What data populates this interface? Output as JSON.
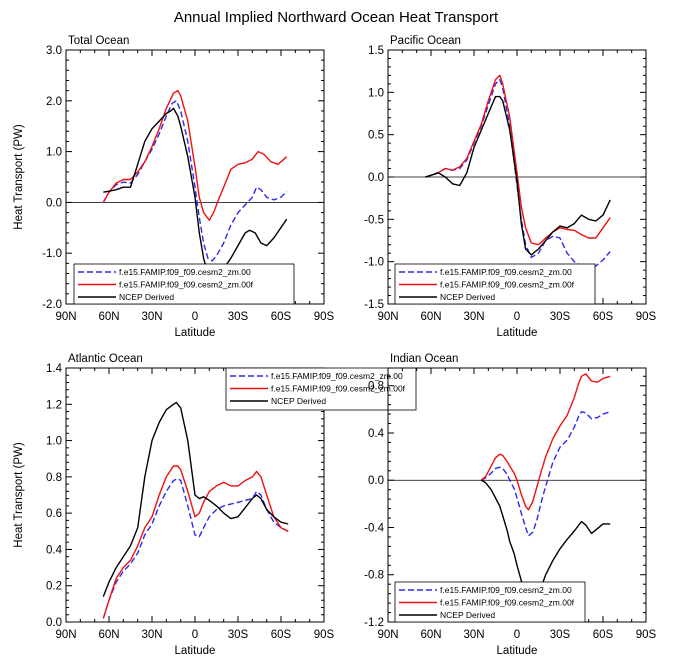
{
  "figure_title": "Annual Implied Northward Ocean Heat Transport",
  "colors": {
    "series_0": "#2a2aee",
    "series_1": "#ee1111",
    "series_2": "#000000"
  },
  "chart_data": [
    {
      "type": "line",
      "title": "Total Ocean",
      "xlabel": "Latitude",
      "ylabel": "Heat Transport (PW)",
      "xlim": [
        90,
        -90
      ],
      "ylim": [
        -2.0,
        3.0
      ],
      "x_ticks": [
        90,
        60,
        30,
        0,
        -30,
        -60,
        -90
      ],
      "x_tick_labels": [
        "90N",
        "60N",
        "30N",
        "0",
        "30S",
        "60S",
        "90S"
      ],
      "y_ticks": [
        -2.0,
        -1.0,
        0.0,
        1.0,
        2.0,
        3.0
      ],
      "y_tick_labels": [
        "-2.0",
        "-1.0",
        "0.0",
        "1.0",
        "2.0",
        "3.0"
      ],
      "legend_position": "bottom-left",
      "series": [
        {
          "name": "f.e15.FAMIP.f09_f09.cesm2_zm.00",
          "style": "dashed",
          "color": "#2a2aee",
          "x": [
            64,
            60,
            55,
            50,
            45,
            40,
            35,
            30,
            25,
            20,
            16,
            13,
            10,
            5,
            0,
            -3,
            -6,
            -9,
            -12,
            -15,
            -20,
            -25,
            -30,
            -35,
            -40,
            -43,
            -46,
            -50,
            -55,
            -60,
            -64
          ],
          "y": [
            0.0,
            0.2,
            0.35,
            0.4,
            0.38,
            0.55,
            0.8,
            1.05,
            1.35,
            1.7,
            1.95,
            2.0,
            1.8,
            1.2,
            0.3,
            -0.3,
            -0.8,
            -1.1,
            -1.15,
            -1.05,
            -0.8,
            -0.45,
            -0.2,
            -0.05,
            0.1,
            0.3,
            0.25,
            0.1,
            0.05,
            0.1,
            0.22
          ]
        },
        {
          "name": "f.e15.FAMIP.f09_f09.cesm2_zm.00f",
          "style": "solid",
          "color": "#ee1111",
          "x": [
            64,
            60,
            55,
            50,
            45,
            40,
            35,
            30,
            25,
            20,
            15,
            12,
            10,
            5,
            0,
            -3,
            -6,
            -10,
            -13,
            -17,
            -20,
            -25,
            -30,
            -35,
            -40,
            -44,
            -48,
            -53,
            -58,
            -64
          ],
          "y": [
            0.0,
            0.2,
            0.38,
            0.45,
            0.45,
            0.6,
            0.8,
            1.1,
            1.45,
            1.85,
            2.15,
            2.2,
            2.1,
            1.6,
            0.7,
            0.1,
            -0.2,
            -0.35,
            -0.2,
            0.1,
            0.3,
            0.65,
            0.75,
            0.78,
            0.85,
            1.0,
            0.95,
            0.8,
            0.75,
            0.9
          ]
        },
        {
          "name": "NCEP Derived",
          "style": "solid",
          "color": "#000000",
          "x": [
            64,
            60,
            55,
            50,
            45,
            40,
            35,
            30,
            25,
            20,
            17,
            15,
            12,
            10,
            5,
            0,
            -3,
            -6,
            -9,
            -13,
            -17,
            -20,
            -25,
            -30,
            -35,
            -38,
            -42,
            -46,
            -50,
            -55,
            -64
          ],
          "y": [
            0.2,
            0.22,
            0.25,
            0.3,
            0.3,
            0.75,
            1.2,
            1.45,
            1.6,
            1.75,
            1.8,
            1.85,
            1.7,
            1.5,
            0.9,
            0.1,
            -0.6,
            -1.1,
            -1.4,
            -1.5,
            -1.45,
            -1.3,
            -1.1,
            -0.85,
            -0.6,
            -0.55,
            -0.6,
            -0.8,
            -0.85,
            -0.7,
            -0.33
          ]
        }
      ]
    },
    {
      "type": "line",
      "title": "Pacific Ocean",
      "xlabel": "Latitude",
      "ylabel": "",
      "xlim": [
        90,
        -90
      ],
      "ylim": [
        -1.5,
        1.5
      ],
      "x_ticks": [
        90,
        60,
        30,
        0,
        -30,
        -60,
        -90
      ],
      "x_tick_labels": [
        "90N",
        "60N",
        "30N",
        "0",
        "30S",
        "60S",
        "90S"
      ],
      "y_ticks": [
        -1.5,
        -1.0,
        -0.5,
        0.0,
        0.5,
        1.0,
        1.5
      ],
      "y_tick_labels": [
        "-1.5",
        "-1.0",
        "-0.5",
        "0.0",
        "0.5",
        "1.0",
        "1.5"
      ],
      "legend_position": "bottom-right",
      "series": [
        {
          "name": "f.e15.FAMIP.f09_f09.cesm2_zm.00",
          "style": "dashed",
          "color": "#2a2aee",
          "x": [
            64,
            60,
            55,
            50,
            45,
            40,
            35,
            30,
            25,
            20,
            15,
            12,
            10,
            5,
            0,
            -3,
            -6,
            -10,
            -15,
            -20,
            -25,
            -30,
            -35,
            -40,
            -45,
            -50,
            -55,
            -60,
            -65
          ],
          "y": [
            0.0,
            0.02,
            0.05,
            0.1,
            0.08,
            0.1,
            0.2,
            0.4,
            0.6,
            0.85,
            1.1,
            1.15,
            1.05,
            0.6,
            -0.1,
            -0.5,
            -0.8,
            -0.95,
            -0.9,
            -0.75,
            -0.7,
            -0.72,
            -0.9,
            -1.0,
            -1.05,
            -1.1,
            -1.05,
            -0.98,
            -0.88
          ]
        },
        {
          "name": "f.e15.FAMIP.f09_f09.cesm2_zm.00f",
          "style": "solid",
          "color": "#ee1111",
          "x": [
            64,
            60,
            55,
            50,
            45,
            40,
            35,
            30,
            25,
            20,
            15,
            12,
            10,
            5,
            0,
            -3,
            -6,
            -10,
            -15,
            -20,
            -25,
            -30,
            -35,
            -40,
            -45,
            -50,
            -55,
            -60,
            -65
          ],
          "y": [
            0.0,
            0.02,
            0.05,
            0.1,
            0.08,
            0.12,
            0.22,
            0.42,
            0.62,
            0.9,
            1.15,
            1.2,
            1.1,
            0.7,
            0.05,
            -0.35,
            -0.6,
            -0.78,
            -0.8,
            -0.72,
            -0.65,
            -0.6,
            -0.62,
            -0.63,
            -0.68,
            -0.72,
            -0.72,
            -0.6,
            -0.48
          ]
        },
        {
          "name": "NCEP Derived",
          "style": "solid",
          "color": "#000000",
          "x": [
            64,
            60,
            55,
            50,
            45,
            40,
            35,
            30,
            25,
            20,
            15,
            12,
            10,
            5,
            0,
            -3,
            -6,
            -10,
            -15,
            -20,
            -25,
            -30,
            -35,
            -40,
            -45,
            -50,
            -55,
            -60,
            -65
          ],
          "y": [
            0.0,
            0.02,
            0.05,
            0.0,
            -0.08,
            -0.1,
            0.05,
            0.35,
            0.55,
            0.75,
            0.95,
            0.95,
            0.9,
            0.55,
            -0.05,
            -0.55,
            -0.85,
            -0.92,
            -0.85,
            -0.75,
            -0.65,
            -0.58,
            -0.6,
            -0.55,
            -0.45,
            -0.5,
            -0.52,
            -0.45,
            -0.27
          ]
        }
      ]
    },
    {
      "type": "line",
      "title": "Atlantic Ocean",
      "xlabel": "Latitude",
      "ylabel": "Heat Transport (PW)",
      "xlim": [
        90,
        -90
      ],
      "ylim": [
        0.0,
        1.4
      ],
      "x_ticks": [
        90,
        60,
        30,
        0,
        -30,
        -60,
        -90
      ],
      "x_tick_labels": [
        "90N",
        "60N",
        "30N",
        "0",
        "30S",
        "60S",
        "90S"
      ],
      "y_ticks": [
        0.0,
        0.2,
        0.4,
        0.6,
        0.8,
        1.0,
        1.2,
        1.4
      ],
      "y_tick_labels": [
        "0.0",
        "0.2",
        "0.4",
        "0.6",
        "0.8",
        "1.0",
        "1.2",
        "1.4"
      ],
      "legend_position": "top-right",
      "series": [
        {
          "name": "f.e15.FAMIP.f09_f09.cesm2_zm.00",
          "style": "dashed",
          "color": "#2a2aee",
          "x": [
            64,
            60,
            55,
            50,
            45,
            40,
            35,
            30,
            25,
            20,
            15,
            12,
            10,
            5,
            0,
            -3,
            -6,
            -10,
            -15,
            -20,
            -25,
            -30,
            -35,
            -40,
            -43,
            -46,
            -50,
            -55,
            -60,
            -65
          ],
          "y": [
            0.02,
            0.12,
            0.22,
            0.28,
            0.32,
            0.38,
            0.48,
            0.54,
            0.64,
            0.72,
            0.78,
            0.79,
            0.78,
            0.64,
            0.48,
            0.47,
            0.52,
            0.58,
            0.62,
            0.64,
            0.65,
            0.66,
            0.67,
            0.68,
            0.72,
            0.7,
            0.62,
            0.55,
            0.52,
            0.5
          ]
        },
        {
          "name": "f.e15.FAMIP.f09_f09.cesm2_zm.00f",
          "style": "solid",
          "color": "#ee1111",
          "x": [
            64,
            60,
            55,
            50,
            45,
            40,
            35,
            30,
            25,
            20,
            15,
            12,
            10,
            5,
            0,
            -3,
            -6,
            -10,
            -15,
            -20,
            -25,
            -30,
            -35,
            -40,
            -43,
            -46,
            -50,
            -55,
            -60,
            -65
          ],
          "y": [
            0.02,
            0.12,
            0.24,
            0.3,
            0.34,
            0.42,
            0.52,
            0.58,
            0.7,
            0.8,
            0.86,
            0.86,
            0.84,
            0.72,
            0.58,
            0.6,
            0.66,
            0.72,
            0.75,
            0.77,
            0.75,
            0.75,
            0.78,
            0.8,
            0.83,
            0.8,
            0.7,
            0.58,
            0.52,
            0.5
          ]
        },
        {
          "name": "NCEP Derived",
          "style": "solid",
          "color": "#000000",
          "x": [
            64,
            60,
            55,
            50,
            45,
            40,
            35,
            30,
            25,
            20,
            15,
            13,
            10,
            5,
            0,
            -3,
            -6,
            -10,
            -15,
            -20,
            -25,
            -30,
            -35,
            -40,
            -43,
            -46,
            -50,
            -55,
            -60,
            -65
          ],
          "y": [
            0.14,
            0.22,
            0.3,
            0.36,
            0.42,
            0.52,
            0.8,
            1.0,
            1.1,
            1.17,
            1.2,
            1.21,
            1.18,
            1.0,
            0.7,
            0.68,
            0.69,
            0.67,
            0.64,
            0.6,
            0.57,
            0.58,
            0.63,
            0.68,
            0.7,
            0.68,
            0.62,
            0.58,
            0.55,
            0.54
          ]
        }
      ]
    },
    {
      "type": "line",
      "title": "Indian Ocean",
      "xlabel": "Latitude",
      "ylabel": "",
      "xlim": [
        90,
        -90
      ],
      "ylim": [
        -1.2,
        0.95
      ],
      "x_ticks": [
        90,
        60,
        30,
        0,
        -30,
        -60,
        -90
      ],
      "x_tick_labels": [
        "90N",
        "60N",
        "30N",
        "0",
        "30S",
        "60S",
        "90S"
      ],
      "y_ticks": [
        -1.2,
        -0.8,
        -0.4,
        0.0,
        0.4,
        0.8
      ],
      "y_tick_labels": [
        "-1.2",
        "-0.8",
        "-0.4",
        "0.0",
        "0.4",
        "0.8"
      ],
      "legend_position": "bottom-left",
      "series": [
        {
          "name": "f.e15.FAMIP.f09_f09.cesm2_zm.00",
          "style": "dashed",
          "color": "#2a2aee",
          "x": [
            25,
            22,
            18,
            15,
            12,
            10,
            7,
            5,
            2,
            0,
            -3,
            -6,
            -8,
            -11,
            -14,
            -17,
            -20,
            -25,
            -30,
            -35,
            -40,
            -43,
            -45,
            -48,
            -52,
            -56,
            -60,
            -65
          ],
          "y": [
            0.0,
            0.02,
            0.06,
            0.1,
            0.11,
            0.1,
            0.05,
            0.0,
            -0.07,
            -0.15,
            -0.28,
            -0.4,
            -0.47,
            -0.44,
            -0.33,
            -0.18,
            -0.05,
            0.15,
            0.28,
            0.34,
            0.45,
            0.54,
            0.58,
            0.57,
            0.52,
            0.53,
            0.56,
            0.58
          ]
        },
        {
          "name": "f.e15.FAMIP.f09_f09.cesm2_zm.00f",
          "style": "solid",
          "color": "#ee1111",
          "x": [
            25,
            22,
            18,
            15,
            12,
            10,
            7,
            5,
            2,
            0,
            -3,
            -6,
            -8,
            -11,
            -14,
            -17,
            -20,
            -25,
            -30,
            -35,
            -40,
            -43,
            -45,
            -48,
            -52,
            -56,
            -60,
            -65
          ],
          "y": [
            0.0,
            0.03,
            0.12,
            0.19,
            0.22,
            0.21,
            0.16,
            0.12,
            0.06,
            0.0,
            -0.12,
            -0.22,
            -0.25,
            -0.18,
            -0.05,
            0.08,
            0.2,
            0.35,
            0.46,
            0.55,
            0.7,
            0.82,
            0.88,
            0.9,
            0.84,
            0.83,
            0.86,
            0.88
          ]
        },
        {
          "name": "NCEP Derived",
          "style": "solid",
          "color": "#000000",
          "x": [
            25,
            22,
            18,
            15,
            12,
            10,
            7,
            5,
            2,
            0,
            -3,
            -6,
            -9,
            -12,
            -15,
            -17,
            -20,
            -25,
            -30,
            -35,
            -40,
            -45,
            -48,
            -52,
            -55,
            -60,
            -65
          ],
          "y": [
            0.0,
            -0.02,
            -0.08,
            -0.15,
            -0.22,
            -0.3,
            -0.42,
            -0.52,
            -0.62,
            -0.72,
            -0.85,
            -0.95,
            -1.02,
            -1.03,
            -0.98,
            -0.9,
            -0.8,
            -0.68,
            -0.58,
            -0.5,
            -0.43,
            -0.35,
            -0.38,
            -0.45,
            -0.42,
            -0.37,
            -0.37
          ]
        }
      ]
    }
  ]
}
